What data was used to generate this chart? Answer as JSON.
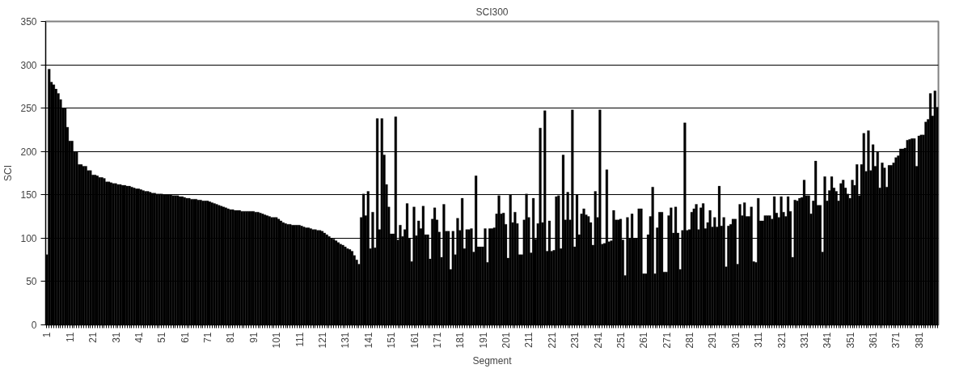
{
  "chart_data": {
    "type": "bar",
    "title": "SCI300",
    "xlabel": "Segment",
    "ylabel": "SCI",
    "categories": [
      "1",
      null,
      null,
      null,
      null,
      null,
      null,
      null,
      null,
      null,
      "11",
      null,
      null,
      null,
      null,
      null,
      null,
      null,
      null,
      null,
      "21",
      null,
      null,
      null,
      null,
      null,
      null,
      null,
      null,
      null,
      "31",
      null,
      null,
      null,
      null,
      null,
      null,
      null,
      null,
      null,
      "41",
      null,
      null,
      null,
      null,
      null,
      null,
      null,
      null,
      null,
      "51",
      null,
      null,
      null,
      null,
      null,
      null,
      null,
      null,
      null,
      "61",
      null,
      null,
      null,
      null,
      null,
      null,
      null,
      null,
      null,
      "71",
      null,
      null,
      null,
      null,
      null,
      null,
      null,
      null,
      null,
      "81",
      null,
      null,
      null,
      null,
      null,
      null,
      null,
      null,
      null,
      "91",
      null,
      null,
      null,
      null,
      null,
      null,
      null,
      null,
      null,
      "101",
      null,
      null,
      null,
      null,
      null,
      null,
      null,
      null,
      null,
      "111",
      null,
      null,
      null,
      null,
      null,
      null,
      null,
      null,
      null,
      "121",
      null,
      null,
      null,
      null,
      null,
      null,
      null,
      null,
      null,
      "131",
      null,
      null,
      null,
      null,
      null,
      null,
      null,
      null,
      null,
      "141",
      null,
      null,
      null,
      null,
      null,
      null,
      null,
      null,
      null,
      "151",
      null,
      null,
      null,
      null,
      null,
      null,
      null,
      null,
      null,
      "161",
      null,
      null,
      null,
      null,
      null,
      null,
      null,
      null,
      null,
      "171",
      null,
      null,
      null,
      null,
      null,
      null,
      null,
      null,
      null,
      "181",
      null,
      null,
      null,
      null,
      null,
      null,
      null,
      null,
      null,
      "191",
      null,
      null,
      null,
      null,
      null,
      null,
      null,
      null,
      null,
      "201",
      null,
      null,
      null,
      null,
      null,
      null,
      null,
      null,
      null,
      "211",
      null,
      null,
      null,
      null,
      null,
      null,
      null,
      null,
      null,
      "221",
      null,
      null,
      null,
      null,
      null,
      null,
      null,
      null,
      null,
      "231",
      null,
      null,
      null,
      null,
      null,
      null,
      null,
      null,
      null,
      "241",
      null,
      null,
      null,
      null,
      null,
      null,
      null,
      null,
      null,
      "251",
      null,
      null,
      null,
      null,
      null,
      null,
      null,
      null,
      null,
      "261",
      null,
      null,
      null,
      null,
      null,
      null,
      null,
      null,
      null,
      "271",
      null,
      null,
      null,
      null,
      null,
      null,
      null,
      null,
      null,
      "281",
      null,
      null,
      null,
      null,
      null,
      null,
      null,
      null,
      null,
      "291",
      null,
      null,
      null,
      null,
      null,
      null,
      null,
      null,
      null,
      "301",
      null,
      null,
      null,
      null,
      null,
      null,
      null,
      null,
      null,
      "311",
      null,
      null,
      null,
      null,
      null,
      null,
      null,
      null,
      null,
      "321",
      null,
      null,
      null,
      null,
      null,
      null,
      null,
      null,
      null,
      "331",
      null,
      null,
      null,
      null,
      null,
      null,
      null,
      null,
      null,
      "341",
      null,
      null,
      null,
      null,
      null,
      null,
      null,
      null,
      null,
      "351",
      null,
      null,
      null,
      null,
      null,
      null,
      null,
      null,
      null,
      "361",
      null,
      null,
      null,
      null,
      null,
      null,
      null,
      null,
      null,
      "371",
      null,
      null,
      null,
      null,
      null,
      null,
      null,
      null,
      null,
      "381",
      null,
      null,
      null,
      null,
      null,
      null,
      null,
      null
    ],
    "values": [
      81,
      295,
      280,
      277,
      272,
      267,
      260,
      250,
      250,
      228,
      212,
      212,
      200,
      200,
      185,
      185,
      183,
      183,
      178,
      178,
      173,
      173,
      172,
      170,
      170,
      169,
      165,
      165,
      164,
      163,
      163,
      162,
      162,
      161,
      161,
      160,
      160,
      159,
      158,
      157,
      157,
      156,
      155,
      154,
      154,
      153,
      152,
      152,
      151,
      151,
      151,
      150,
      150,
      150,
      150,
      149,
      149,
      149,
      148,
      148,
      147,
      146,
      146,
      145,
      145,
      145,
      144,
      144,
      143,
      143,
      143,
      142,
      141,
      140,
      139,
      138,
      137,
      136,
      135,
      134,
      133,
      133,
      132,
      132,
      132,
      131,
      131,
      131,
      131,
      131,
      131,
      130,
      130,
      129,
      128,
      127,
      126,
      125,
      124,
      124,
      124,
      122,
      120,
      118,
      117,
      116,
      116,
      115,
      115,
      115,
      115,
      114,
      113,
      112,
      112,
      111,
      110,
      110,
      109,
      109,
      108,
      106,
      104,
      102,
      100,
      99,
      97,
      95,
      93,
      92,
      90,
      88,
      87,
      85,
      80,
      75,
      70,
      124,
      151,
      126,
      154,
      88,
      130,
      89,
      238,
      110,
      238,
      196,
      162,
      136,
      105,
      105,
      240,
      98,
      115,
      102,
      110,
      140,
      100,
      73,
      136,
      103,
      120,
      111,
      137,
      104,
      104,
      76,
      122,
      135,
      121,
      107,
      78,
      139,
      108,
      108,
      64,
      108,
      81,
      123,
      109,
      146,
      88,
      110,
      110,
      111,
      84,
      172,
      90,
      90,
      90,
      111,
      72,
      111,
      111,
      112,
      128,
      149,
      128,
      129,
      116,
      77,
      150,
      118,
      130,
      117,
      81,
      81,
      121,
      151,
      124,
      83,
      146,
      99,
      117,
      227,
      118,
      247,
      85,
      120,
      85,
      86,
      148,
      149,
      88,
      196,
      121,
      153,
      121,
      248,
      90,
      150,
      104,
      128,
      134,
      127,
      125,
      118,
      92,
      154,
      124,
      248,
      93,
      94,
      179,
      96,
      97,
      132,
      121,
      121,
      122,
      98,
      57,
      124,
      100,
      128,
      100,
      100,
      134,
      134,
      59,
      59,
      104,
      125,
      159,
      59,
      112,
      130,
      130,
      61,
      61,
      126,
      135,
      106,
      136,
      106,
      64,
      109,
      233,
      109,
      110,
      130,
      134,
      139,
      110,
      135,
      140,
      111,
      118,
      132,
      113,
      124,
      113,
      160,
      114,
      124,
      67,
      114,
      116,
      122,
      122,
      70,
      139,
      126,
      141,
      125,
      125,
      136,
      73,
      72,
      146,
      120,
      120,
      126,
      126,
      126,
      122,
      148,
      129,
      124,
      148,
      130,
      125,
      148,
      131,
      78,
      144,
      143,
      146,
      147,
      167,
      149,
      149,
      128,
      143,
      189,
      138,
      138,
      84,
      171,
      143,
      155,
      171,
      158,
      154,
      143,
      163,
      167,
      158,
      151,
      146,
      167,
      161,
      185,
      149,
      185,
      221,
      177,
      224,
      178,
      208,
      183,
      200,
      158,
      187,
      181,
      159,
      184,
      184,
      187,
      193,
      195,
      203,
      203,
      204,
      213,
      214,
      215,
      215,
      183,
      218,
      219,
      219,
      234,
      237,
      267,
      241,
      270,
      251
    ],
    "color": "#000000",
    "ylim": [
      0,
      350
    ],
    "yticks": [
      0,
      50,
      100,
      150,
      200,
      250,
      300,
      350
    ],
    "grid": "y"
  }
}
